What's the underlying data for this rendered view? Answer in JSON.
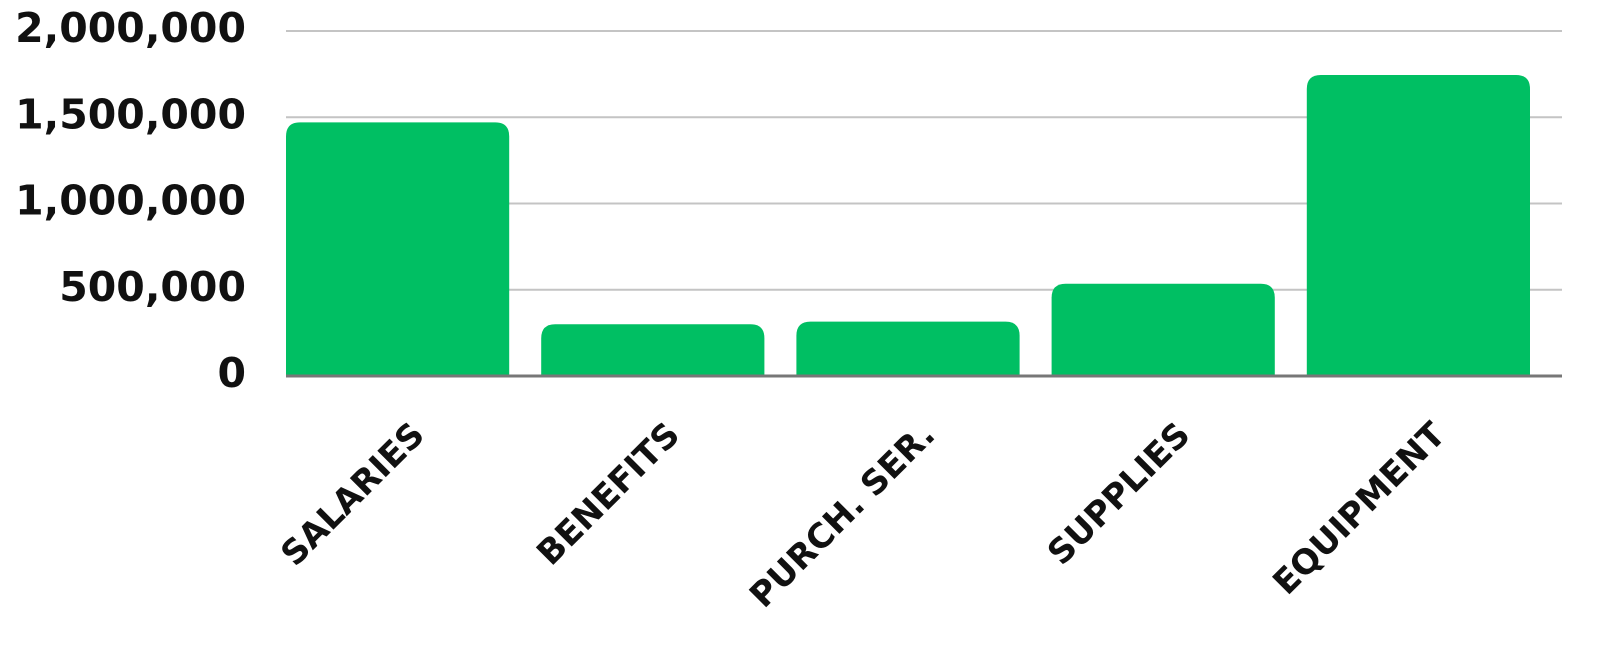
{
  "chart_data": {
    "type": "bar",
    "categories": [
      "SALARIES",
      "BENEFITS",
      "PURCH. SER.",
      "SUPPLIES",
      "EQUIPMENT"
    ],
    "values": [
      1470000,
      300000,
      315000,
      535000,
      1745000
    ],
    "y_ticks": [
      0,
      500000,
      1000000,
      1500000,
      2000000
    ],
    "y_tick_labels": [
      "0",
      "500,000",
      "1,000,000",
      "1,500,000",
      "2,000,000"
    ],
    "ylim": [
      0,
      2000000
    ],
    "grid": true,
    "legend": "none",
    "title": "",
    "xlabel": "",
    "ylabel": "",
    "bar_color": "#00BF63"
  }
}
